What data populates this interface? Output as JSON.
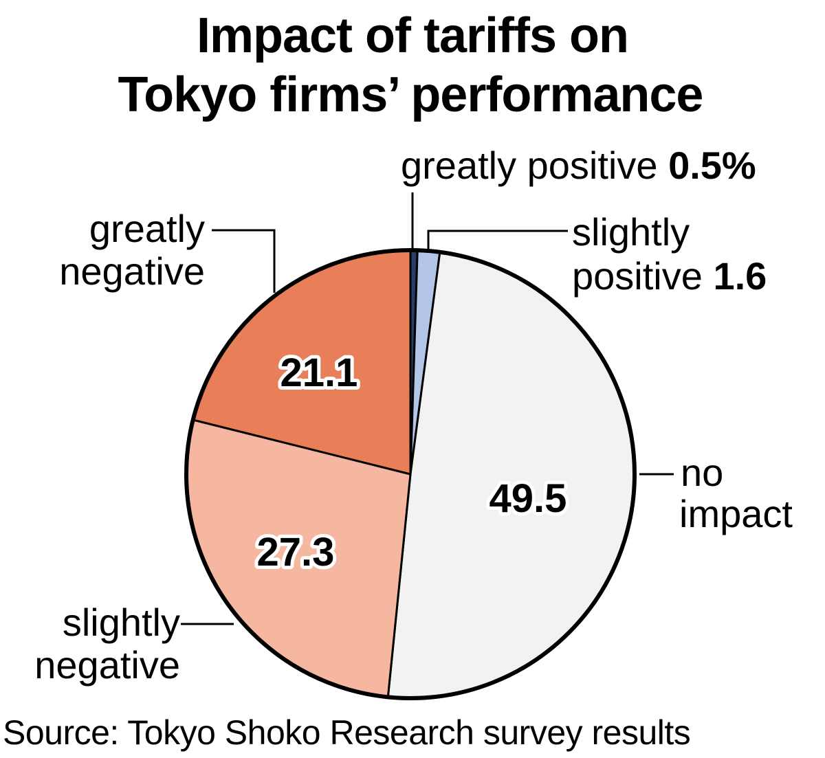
{
  "chart_data": {
    "type": "pie",
    "title": [
      "Impact of tariffs on",
      "Tokyo firms’ performance"
    ],
    "unit": "%",
    "slices": [
      {
        "name": "greatly positive",
        "label_lines": [
          "greatly positive"
        ],
        "value": 0.5,
        "value_label": "0.5%",
        "color": "#2b3a66"
      },
      {
        "name": "slightly positive",
        "label_lines": [
          "slightly",
          "positive"
        ],
        "value": 1.6,
        "value_label": "1.6",
        "color": "#b4c6e8"
      },
      {
        "name": "no impact",
        "label_lines": [
          "no",
          "impact"
        ],
        "value": 49.5,
        "value_label": "49.5",
        "color": "#f2f2f2"
      },
      {
        "name": "slightly negative",
        "label_lines": [
          "slightly",
          "negative"
        ],
        "value": 27.3,
        "value_label": "27.3",
        "color": "#f5b7a0"
      },
      {
        "name": "greatly negative",
        "label_lines": [
          "greatly",
          "negative"
        ],
        "value": 21.1,
        "value_label": "21.1",
        "color": "#e87f58"
      }
    ],
    "start_angle_deg": 0,
    "direction": "clockwise",
    "source": "Source: Tokyo Shoko Research survey results"
  }
}
